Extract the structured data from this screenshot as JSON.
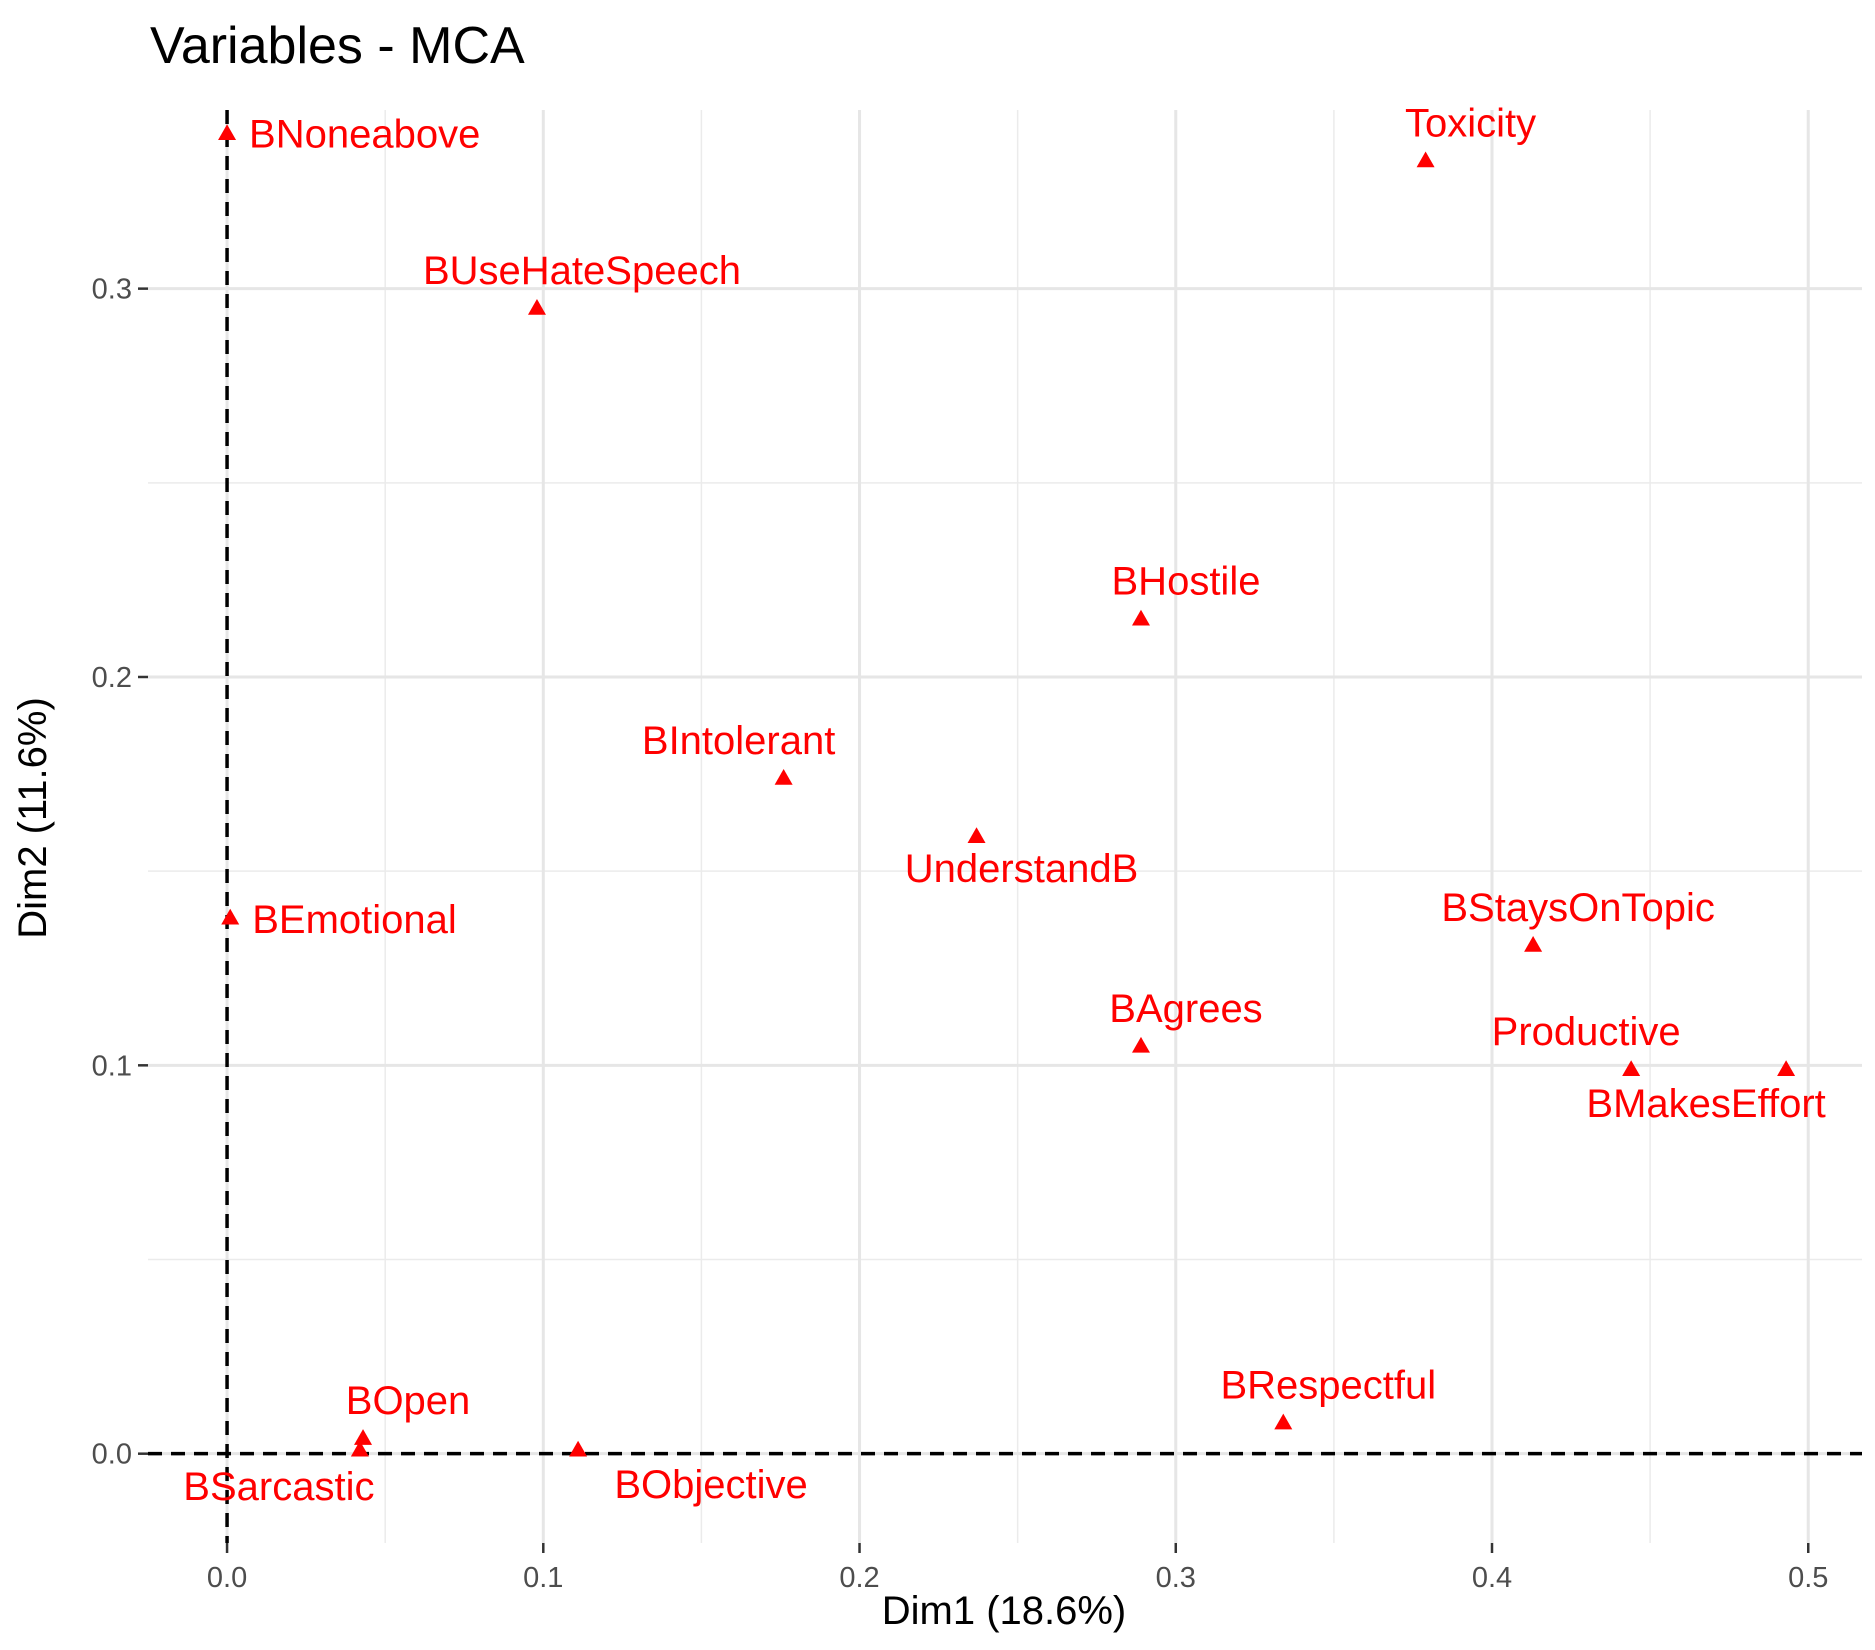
{
  "chart_data": {
    "type": "scatter",
    "title": "Variables - MCA",
    "xlabel": "Dim1 (18.6%)",
    "ylabel": "Dim2 (11.6%)",
    "xlim": [
      -0.025,
      0.517
    ],
    "ylim": [
      -0.023,
      0.346
    ],
    "xticks": [
      0.0,
      0.1,
      0.2,
      0.3,
      0.4,
      0.5
    ],
    "xtick_labels": [
      "0.0",
      "0.1",
      "0.2",
      "0.3",
      "0.4",
      "0.5"
    ],
    "yticks": [
      0.0,
      0.1,
      0.2,
      0.3
    ],
    "ytick_labels": [
      "0.0",
      "0.1",
      "0.2",
      "0.3"
    ],
    "grid": true,
    "reference_lines": {
      "x": 0,
      "y": 0,
      "style": "dashed"
    },
    "marker": "triangle",
    "point_color": "#ff0000",
    "points": [
      {
        "label": "BNoneabove",
        "x": 0.0,
        "y": 0.34
      },
      {
        "label": "Toxicity",
        "x": 0.379,
        "y": 0.333
      },
      {
        "label": "BUseHateSpeech",
        "x": 0.098,
        "y": 0.295
      },
      {
        "label": "BHostile",
        "x": 0.289,
        "y": 0.215
      },
      {
        "label": "BIntolerant",
        "x": 0.176,
        "y": 0.174
      },
      {
        "label": "UnderstandB",
        "x": 0.237,
        "y": 0.159
      },
      {
        "label": "BEmotional",
        "x": 0.001,
        "y": 0.138
      },
      {
        "label": "BStaysOnTopic",
        "x": 0.413,
        "y": 0.131
      },
      {
        "label": "BAgrees",
        "x": 0.289,
        "y": 0.105
      },
      {
        "label": "Productive",
        "x": 0.444,
        "y": 0.099
      },
      {
        "label": "BMakesEffort",
        "x": 0.493,
        "y": 0.099
      },
      {
        "label": "BRespectful",
        "x": 0.334,
        "y": 0.008
      },
      {
        "label": "BOpen",
        "x": 0.043,
        "y": 0.004
      },
      {
        "label": "BSarcastic",
        "x": 0.042,
        "y": 0.001
      },
      {
        "label": "BObjective",
        "x": 0.111,
        "y": 0.001
      }
    ]
  }
}
